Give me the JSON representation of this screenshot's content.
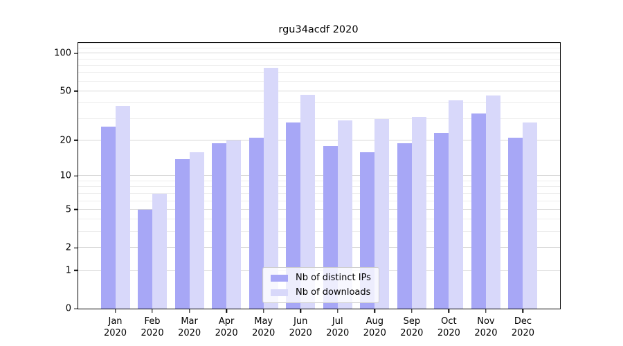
{
  "chart_data": {
    "type": "bar",
    "title": "rgu34acdf 2020",
    "categories": [
      "Jan",
      "Feb",
      "Mar",
      "Apr",
      "May",
      "Jun",
      "Jul",
      "Aug",
      "Sep",
      "Oct",
      "Nov",
      "Dec"
    ],
    "x_year": "2020",
    "series": [
      {
        "name": "Nb of distinct IPs",
        "color": "#a7a7f6",
        "values": [
          26,
          5,
          14,
          19,
          21,
          28,
          18,
          16,
          19,
          23,
          33,
          21
        ]
      },
      {
        "name": "Nb of downloads",
        "color": "#d8d8fa",
        "values": [
          38,
          7,
          16,
          20,
          77,
          47,
          29,
          30,
          31,
          42,
          46,
          28
        ]
      }
    ],
    "y_scale": "log1p",
    "y_ticks": [
      100,
      50,
      20,
      10,
      5,
      2,
      1,
      0
    ],
    "y_minor_ticks": [
      3,
      4,
      6,
      7,
      8,
      9,
      30,
      40,
      60,
      70,
      80,
      90,
      110,
      120
    ],
    "ylim": [
      0,
      122
    ],
    "grid": "both",
    "legend_position": "lower center"
  }
}
